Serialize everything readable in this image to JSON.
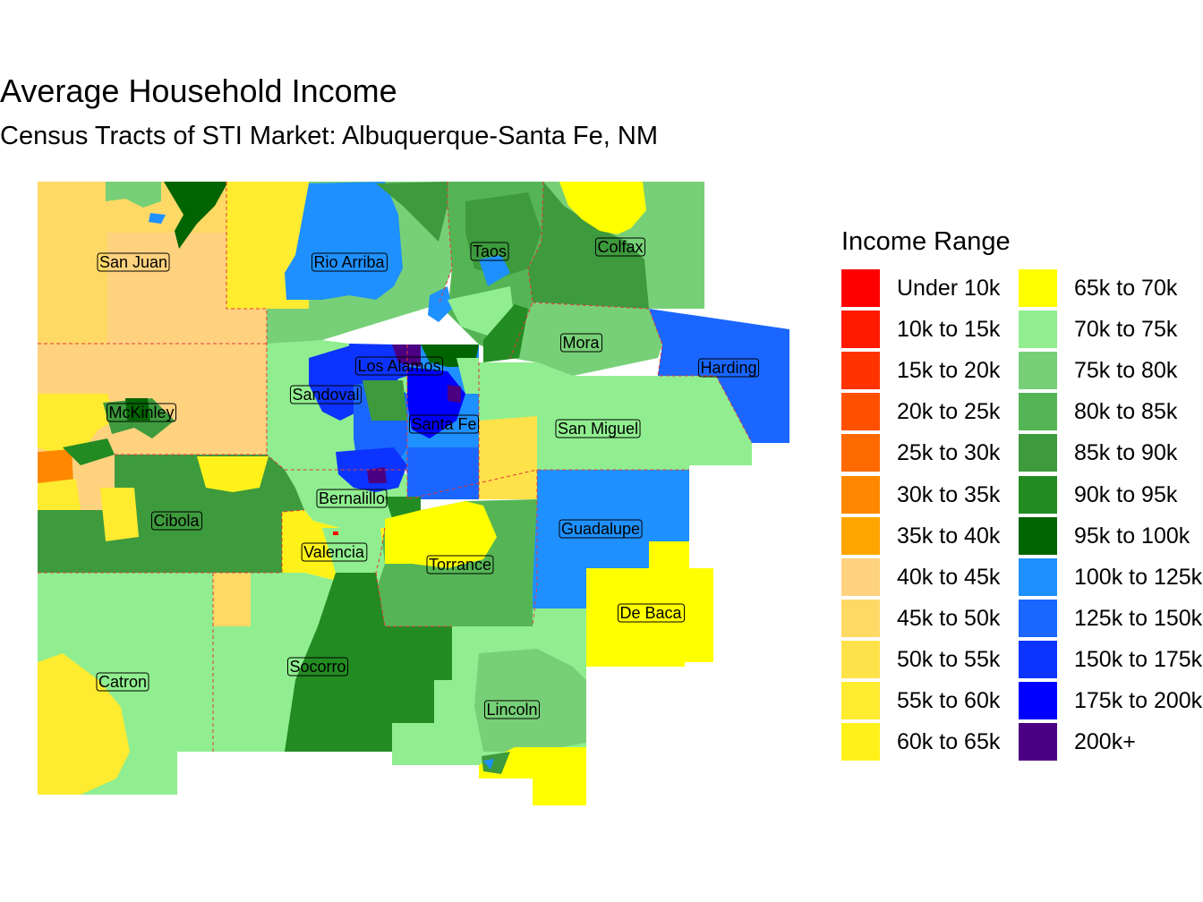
{
  "title": "Average Household Income",
  "subtitle": "Census Tracts of STI Market: Albuquerque-Santa Fe, NM",
  "legend": {
    "title": "Income Range",
    "items": [
      {
        "label": "Under 10k",
        "color": "#FF0000"
      },
      {
        "label": "10k to 15k",
        "color": "#FF1A00"
      },
      {
        "label": "15k to 20k",
        "color": "#FF3300"
      },
      {
        "label": "20k to 25k",
        "color": "#FF5000"
      },
      {
        "label": "25k to 30k",
        "color": "#FF6A00"
      },
      {
        "label": "30k to 35k",
        "color": "#FF8800"
      },
      {
        "label": "35k to 40k",
        "color": "#FFA500"
      },
      {
        "label": "40k to 45k",
        "color": "#FFD27F"
      },
      {
        "label": "45k to 50k",
        "color": "#FFD966"
      },
      {
        "label": "50k to 55k",
        "color": "#FFE24A"
      },
      {
        "label": "55k to 60k",
        "color": "#FFEB30"
      },
      {
        "label": "60k to 65k",
        "color": "#FFF21A"
      },
      {
        "label": "65k to 70k",
        "color": "#FFFF00"
      },
      {
        "label": "70k to 75k",
        "color": "#90EE90"
      },
      {
        "label": "75k to 80k",
        "color": "#77D077"
      },
      {
        "label": "80k to 85k",
        "color": "#55B555"
      },
      {
        "label": "85k to 90k",
        "color": "#3D9A3D"
      },
      {
        "label": "90k to 95k",
        "color": "#228B22"
      },
      {
        "label": "95k to 100k",
        "color": "#006400"
      },
      {
        "label": "100k to 125k",
        "color": "#1E90FF"
      },
      {
        "label": "125k to 150k",
        "color": "#1A66FF"
      },
      {
        "label": "150k to 175k",
        "color": "#0D33FF"
      },
      {
        "label": "175k to 200k",
        "color": "#0000FF"
      },
      {
        "label": "200k+",
        "color": "#4B0082"
      }
    ]
  },
  "counties": [
    {
      "name": "San Juan",
      "fill": "#FFD966"
    },
    {
      "name": "Rio Arriba",
      "fill": "#77D077"
    },
    {
      "name": "Taos",
      "fill": "#55B555"
    },
    {
      "name": "Colfax",
      "fill": "#3D9A3D"
    },
    {
      "name": "McKinley",
      "fill": "#FFD27F"
    },
    {
      "name": "Sandoval",
      "fill": "#90EE90"
    },
    {
      "name": "Los Alamos",
      "fill": "#0D33FF"
    },
    {
      "name": "Santa Fe",
      "fill": "#1E90FF"
    },
    {
      "name": "Mora",
      "fill": "#77D077"
    },
    {
      "name": "Harding",
      "fill": "#1A66FF"
    },
    {
      "name": "San Miguel",
      "fill": "#90EE90"
    },
    {
      "name": "Bernalillo",
      "fill": "#90EE90"
    },
    {
      "name": "Cibola",
      "fill": "#3D9A3D"
    },
    {
      "name": "Valencia",
      "fill": "#FFF21A"
    },
    {
      "name": "Torrance",
      "fill": "#55B555"
    },
    {
      "name": "Guadalupe",
      "fill": "#1E90FF"
    },
    {
      "name": "De Baca",
      "fill": "#FFFF00"
    },
    {
      "name": "Catron",
      "fill": "#90EE90"
    },
    {
      "name": "Socorro",
      "fill": "#90EE90"
    },
    {
      "name": "Lincoln",
      "fill": "#90EE90"
    }
  ]
}
